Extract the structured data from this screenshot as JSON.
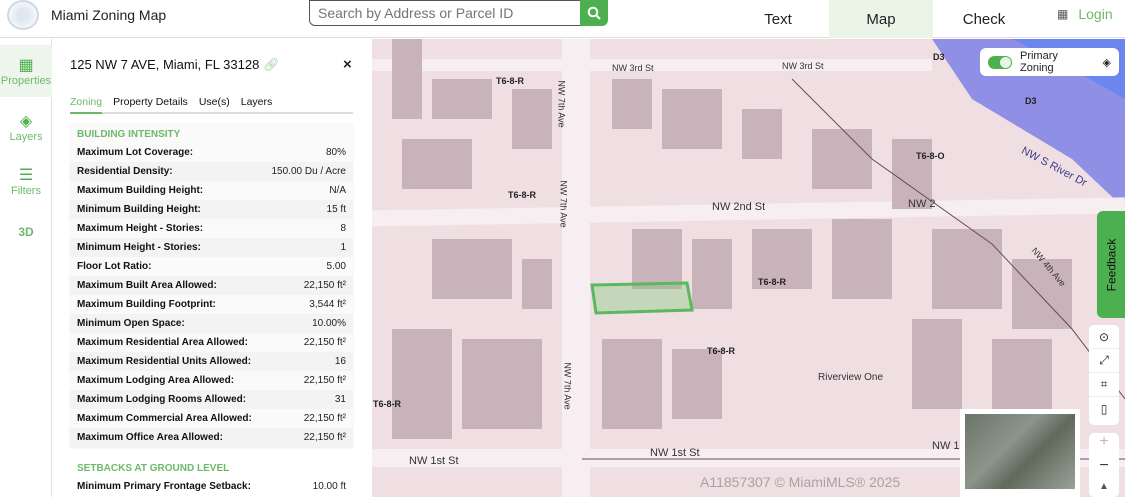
{
  "header": {
    "title": "Miami Zoning Map",
    "search_placeholder": "Search by Address or Parcel ID",
    "nav": [
      {
        "label": "Text"
      },
      {
        "label": "Map",
        "active": true
      },
      {
        "label": "Check"
      }
    ],
    "login": "Login"
  },
  "rail": [
    {
      "label": "Properties",
      "icon": "building-icon"
    },
    {
      "label": "Layers",
      "icon": "layers-icon"
    },
    {
      "label": "Filters",
      "icon": "filter-icon"
    },
    {
      "label": "3D"
    }
  ],
  "watermark": "A11857307 © MiamiMLS® 2025",
  "panel": {
    "address": "125 NW 7 AVE, Miami, FL 33128",
    "tabs": [
      "Zoning",
      "Property Details",
      "Use(s)",
      "Layers"
    ],
    "building_intensity": {
      "title": "BUILDING INTENSITY",
      "rows": [
        [
          "Maximum Lot Coverage:",
          "80%"
        ],
        [
          "Residential Density:",
          "150.00 Du / Acre"
        ],
        [
          "Maximum Building Height:",
          "N/A"
        ],
        [
          "Minimum Building Height:",
          "15 ft"
        ],
        [
          "Maximum Height - Stories:",
          "8"
        ],
        [
          "Minimum Height - Stories:",
          "1"
        ],
        [
          "Floor Lot Ratio:",
          "5.00"
        ],
        [
          "Maximum Built Area Allowed:",
          "22,150 ft²"
        ],
        [
          "Maximum Building Footprint:",
          "3,544 ft²"
        ],
        [
          "Minimum Open Space:",
          "10.00%"
        ],
        [
          "Maximum Residential Area Allowed:",
          "22,150 ft²"
        ],
        [
          "Maximum Residential Units Allowed:",
          "16"
        ],
        [
          "Maximum Lodging Area Allowed:",
          "22,150 ft²"
        ],
        [
          "Maximum Lodging Rooms Allowed:",
          "31"
        ],
        [
          "Maximum Commercial Area Allowed:",
          "22,150 ft²"
        ],
        [
          "Maximum Office Area Allowed:",
          "22,150 ft²"
        ]
      ]
    },
    "setbacks": {
      "title": "SETBACKS AT GROUND LEVEL",
      "rows": [
        [
          "Minimum Primary Frontage Setback:",
          "10.00 ft"
        ]
      ]
    }
  },
  "map": {
    "primary_zoning": "Primary Zoning",
    "feedback": "Feedback",
    "accent": "#4caf50",
    "labels": [
      "T6-8-R",
      "T6-8-R",
      "T6-8-R",
      "T6-8-R",
      "T6-8-R",
      "D3",
      "D3",
      "T6-8-O"
    ],
    "streets": [
      "NW 3rd St",
      "NW 3rd St",
      "NW 2nd St",
      "NW 2",
      "NW 1st St",
      "NW 1st St",
      "NW 1",
      "NW 7th Ave",
      "NW 7th Ave",
      "NW 7th Ave",
      "NW S River Dr",
      "NW 4th Ave",
      "Riverview One"
    ],
    "zoom_in": "+",
    "zoom_out": "−"
  }
}
